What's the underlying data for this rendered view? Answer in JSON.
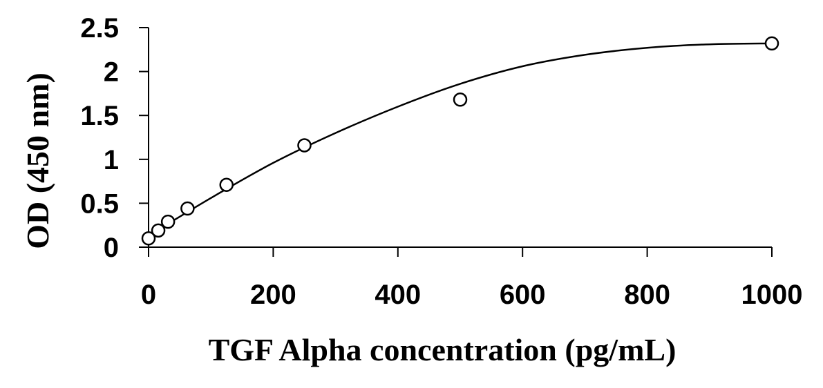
{
  "chart_data": {
    "type": "scatter",
    "title": "",
    "xlabel": "TGF Alpha concentration (pg/mL)",
    "ylabel": "OD (450 nm)",
    "xlim": [
      0,
      1000
    ],
    "ylim": [
      0,
      2.5
    ],
    "x_ticks": [
      0,
      200,
      400,
      600,
      800,
      1000
    ],
    "y_ticks": [
      0,
      0.5,
      1,
      1.5,
      2,
      2.5
    ],
    "x_tick_labels": [
      "0",
      "200",
      "400",
      "600",
      "800",
      "1000"
    ],
    "y_tick_labels": [
      "0",
      "0.5",
      "1",
      "1.5",
      "2",
      "2.5"
    ],
    "grid": false,
    "legend": "none",
    "series": [
      {
        "marker": "open-circle",
        "x": [
          0,
          15.6,
          31.2,
          62.5,
          125,
          250,
          500,
          1000
        ],
        "y": [
          0.1,
          0.19,
          0.29,
          0.44,
          0.71,
          1.16,
          1.68,
          2.32
        ]
      }
    ],
    "fit": {
      "type": "polynomial-2",
      "x": [
        0,
        100,
        200,
        300,
        400,
        500,
        600,
        700,
        800,
        900,
        1000
      ],
      "y": [
        0.13,
        0.56,
        0.96,
        1.3,
        1.6,
        1.86,
        2.06,
        2.19,
        2.27,
        2.31,
        2.32
      ]
    }
  }
}
